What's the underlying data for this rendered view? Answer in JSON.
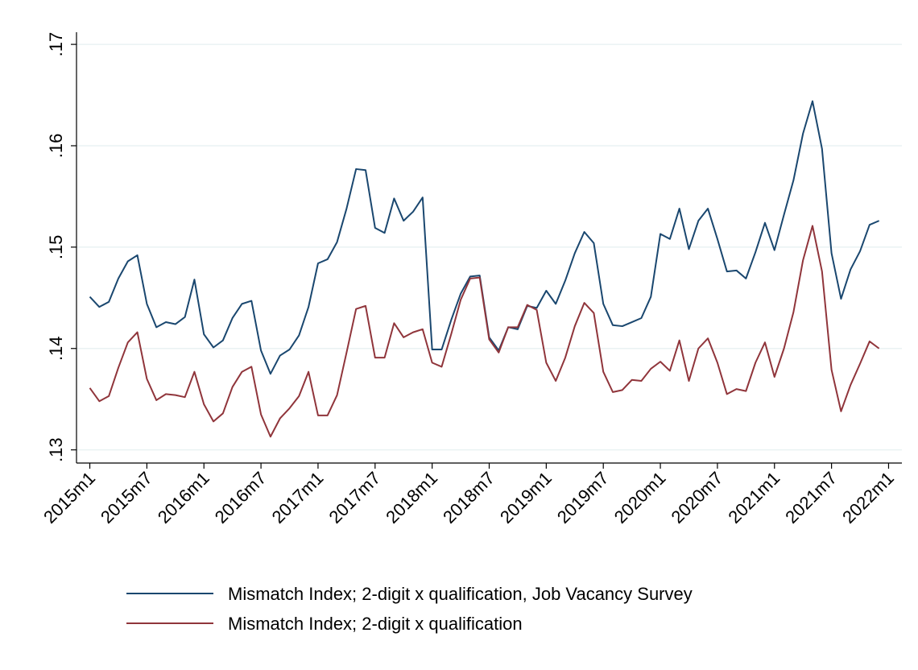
{
  "chart_data": {
    "type": "line",
    "x": [
      660,
      661,
      662,
      663,
      664,
      665,
      666,
      667,
      668,
      669,
      670,
      671,
      672,
      673,
      674,
      675,
      676,
      677,
      678,
      679,
      680,
      681,
      682,
      683,
      684,
      685,
      686,
      687,
      688,
      689,
      690,
      691,
      692,
      693,
      694,
      695,
      696,
      697,
      698,
      699,
      700,
      701,
      702,
      703,
      704,
      705,
      706,
      707,
      708,
      709,
      710,
      711,
      712,
      713,
      714,
      715,
      716,
      717,
      718,
      719,
      720,
      721,
      722,
      723,
      724,
      725,
      726,
      727,
      728,
      729,
      730,
      731,
      732,
      733,
      734,
      735,
      736,
      737,
      738,
      739,
      740,
      741,
      742,
      743
    ],
    "series": [
      {
        "name": "Mismatch Index; 2-digit x qualification, Job Vacancy Survey",
        "color": "#1a476f",
        "values": [
          0.1451,
          0.1441,
          0.1446,
          0.1469,
          0.1486,
          0.1492,
          0.1444,
          0.1421,
          0.1426,
          0.1424,
          0.1431,
          0.1468,
          0.1414,
          0.1401,
          0.1408,
          0.143,
          0.1444,
          0.1447,
          0.1398,
          0.1375,
          0.1393,
          0.1399,
          0.1413,
          0.1441,
          0.1484,
          0.1488,
          0.1505,
          0.1538,
          0.1577,
          0.1576,
          0.1519,
          0.1514,
          0.1548,
          0.1526,
          0.1535,
          0.1549,
          0.1399,
          0.1399,
          0.1428,
          0.1454,
          0.1471,
          0.1472,
          0.1411,
          0.1398,
          0.1421,
          0.1419,
          0.1442,
          0.144,
          0.1457,
          0.1444,
          0.1467,
          0.1494,
          0.1515,
          0.1504,
          0.1444,
          0.1423,
          0.1422,
          0.1426,
          0.143,
          0.1451,
          0.1513,
          0.1508,
          0.1538,
          0.1498,
          0.1526,
          0.1538,
          0.1508,
          0.1476,
          0.1477,
          0.1469,
          0.1495,
          0.1524,
          0.1497,
          0.1532,
          0.1566,
          0.1612,
          0.1644,
          0.1597,
          0.1494,
          0.1449,
          0.1478,
          0.1496,
          0.1522,
          0.1526
        ]
      },
      {
        "name": "Mismatch Index; 2-digit x qualification",
        "color": "#90353b",
        "values": [
          0.1361,
          0.1348,
          0.1353,
          0.1381,
          0.1406,
          0.1416,
          0.137,
          0.1349,
          0.1355,
          0.1354,
          0.1352,
          0.1377,
          0.1345,
          0.1328,
          0.1336,
          0.1362,
          0.1377,
          0.1382,
          0.1335,
          0.1313,
          0.1331,
          0.1341,
          0.1353,
          0.1377,
          0.1334,
          0.1334,
          0.1354,
          0.1396,
          0.1439,
          0.1442,
          0.1391,
          0.1391,
          0.1425,
          0.1411,
          0.1416,
          0.1419,
          0.1386,
          0.1382,
          0.1414,
          0.1448,
          0.1469,
          0.147,
          0.1409,
          0.1396,
          0.1421,
          0.1421,
          0.1443,
          0.1438,
          0.1386,
          0.1368,
          0.1391,
          0.1422,
          0.1445,
          0.1435,
          0.1377,
          0.1357,
          0.1359,
          0.1369,
          0.1368,
          0.138,
          0.1387,
          0.1378,
          0.1408,
          0.1368,
          0.14,
          0.141,
          0.1386,
          0.1355,
          0.136,
          0.1358,
          0.1386,
          0.1406,
          0.1372,
          0.14,
          0.1436,
          0.1487,
          0.1521,
          0.1476,
          0.1379,
          0.1338,
          0.1364,
          0.1385,
          0.1407,
          0.14
        ]
      }
    ],
    "xlim": [
      658.6,
      745.4
    ],
    "xticks": [
      {
        "value": 660,
        "label": "2015m1"
      },
      {
        "value": 666,
        "label": "2015m7"
      },
      {
        "value": 672,
        "label": "2016m1"
      },
      {
        "value": 678,
        "label": "2016m7"
      },
      {
        "value": 684,
        "label": "2017m1"
      },
      {
        "value": 690,
        "label": "2017m7"
      },
      {
        "value": 696,
        "label": "2018m1"
      },
      {
        "value": 702,
        "label": "2018m7"
      },
      {
        "value": 708,
        "label": "2019m1"
      },
      {
        "value": 714,
        "label": "2019m7"
      },
      {
        "value": 720,
        "label": "2020m1"
      },
      {
        "value": 726,
        "label": "2020m7"
      },
      {
        "value": 732,
        "label": "2021m1"
      },
      {
        "value": 738,
        "label": "2021m7"
      },
      {
        "value": 744,
        "label": "2022m1"
      }
    ],
    "ylim": [
      0.1287,
      0.1712
    ],
    "yticks": [
      {
        "value": 0.13,
        "label": ".13"
      },
      {
        "value": 0.14,
        "label": ".14"
      },
      {
        "value": 0.15,
        "label": ".15"
      },
      {
        "value": 0.16,
        "label": ".16"
      },
      {
        "value": 0.17,
        "label": ".17"
      }
    ],
    "grid": true
  }
}
